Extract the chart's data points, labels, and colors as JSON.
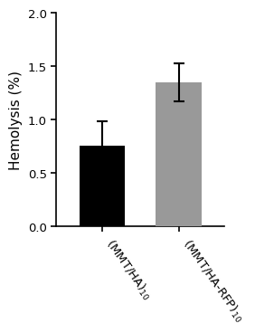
{
  "categories": [
    "(MMT/HA)$_{10}$",
    "(MMT/HA-RFP)$_{10}$"
  ],
  "values": [
    0.76,
    1.35
  ],
  "errors": [
    0.23,
    0.18
  ],
  "bar_colors": [
    "#000000",
    "#999999"
  ],
  "ylabel": "Hemolysis (%)",
  "ylim": [
    0.0,
    2.0
  ],
  "yticks": [
    0.0,
    0.5,
    1.0,
    1.5,
    2.0
  ],
  "background_color": "#ffffff",
  "bar_width": 0.6,
  "capsize": 4,
  "error_color": "#000000",
  "tick_label_fontsize": 9.5,
  "ylabel_fontsize": 11,
  "rotation": -55
}
